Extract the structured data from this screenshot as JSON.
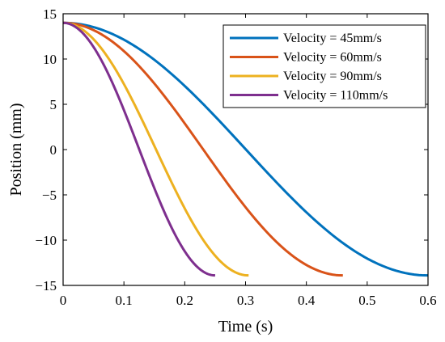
{
  "chart_data": {
    "type": "line",
    "xlabel": "Time (s)",
    "ylabel": "Position (mm)",
    "xlim": [
      0,
      0.6
    ],
    "ylim": [
      -15,
      15
    ],
    "xticks": [
      0,
      0.1,
      0.2,
      0.3,
      0.4,
      0.5,
      0.6
    ],
    "xtick_labels": [
      "0",
      "0.1",
      "0.2",
      "0.3",
      "0.4",
      "0.5",
      "0.6"
    ],
    "yticks": [
      -15,
      -10,
      -5,
      0,
      5,
      10,
      15
    ],
    "ytick_labels": [
      "−15",
      "−10",
      "−5",
      "0",
      "5",
      "10",
      "15"
    ],
    "grid": false,
    "legend_position": "top-right",
    "series": [
      {
        "name": "Velocity = 45mm/s",
        "color": "#0072BD",
        "x_start": 0.0,
        "x_end": 0.6,
        "y_start": 14.0,
        "y_end": -13.9
      },
      {
        "name": "Velocity = 60mm/s",
        "color": "#D95319",
        "x_start": 0.0,
        "x_end": 0.46,
        "y_start": 14.0,
        "y_end": -13.9
      },
      {
        "name": "Velocity = 90mm/s",
        "color": "#EDB120",
        "x_start": 0.0,
        "x_end": 0.305,
        "y_start": 14.0,
        "y_end": -13.9
      },
      {
        "name": "Velocity = 110mm/s",
        "color": "#7E2F8E",
        "x_start": 0.0,
        "x_end": 0.25,
        "y_start": 14.0,
        "y_end": -13.9
      }
    ]
  }
}
